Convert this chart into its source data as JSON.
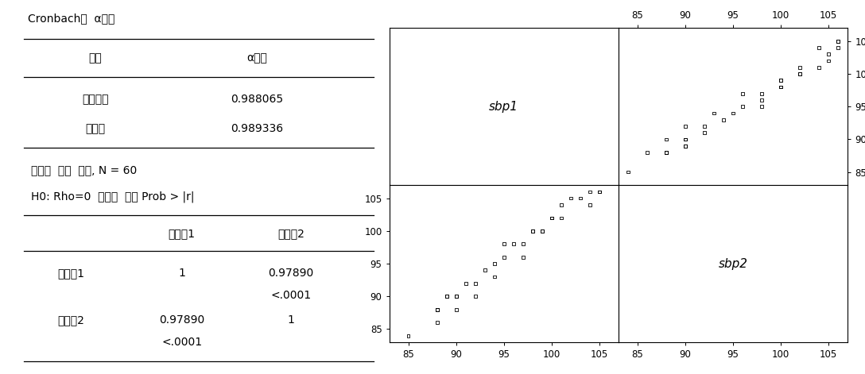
{
  "title_cronbach": "Cronbach의  α계수",
  "col1_header": "변수",
  "col2_header": "α계수",
  "row1_label": "원데이터",
  "row1_value": "0.988065",
  "row2_label": "표준화",
  "row2_value": "0.989336",
  "pearson_text1": "피어슨  상관  계수, N = 60",
  "pearson_text2": "H0: Rho=0  검정에  대한 Prob > |r|",
  "corr_col1": "수축기1",
  "corr_col2": "수축기2",
  "corr_row1_label": "수축기1",
  "corr_row1_v1": "1",
  "corr_row1_v2": "0.97890",
  "corr_row1_p2": "<.0001",
  "corr_row2_label": "수축기2",
  "corr_row2_v1": "0.97890",
  "corr_row2_v2": "1",
  "corr_row2_p1": "<.0001",
  "sbp1_label": "sbp1",
  "sbp2_label": "sbp2",
  "scatter_sbp1": [
    85,
    88,
    88,
    88,
    88,
    89,
    89,
    90,
    90,
    90,
    91,
    92,
    92,
    93,
    94,
    94,
    95,
    95,
    96,
    97,
    97,
    98,
    98,
    99,
    99,
    100,
    100,
    101,
    101,
    102,
    103,
    104,
    104,
    105,
    105
  ],
  "scatter_sbp2": [
    84,
    88,
    88,
    86,
    88,
    90,
    90,
    90,
    90,
    88,
    92,
    92,
    90,
    94,
    95,
    93,
    98,
    96,
    98,
    98,
    96,
    100,
    100,
    100,
    100,
    102,
    102,
    104,
    102,
    105,
    105,
    106,
    104,
    106,
    106
  ],
  "axis_min": 83,
  "axis_max": 107,
  "axis_ticks": [
    85,
    90,
    95,
    100,
    105
  ],
  "bg_color": "#ffffff",
  "font_color": "#000000",
  "marker_color": "#000000"
}
